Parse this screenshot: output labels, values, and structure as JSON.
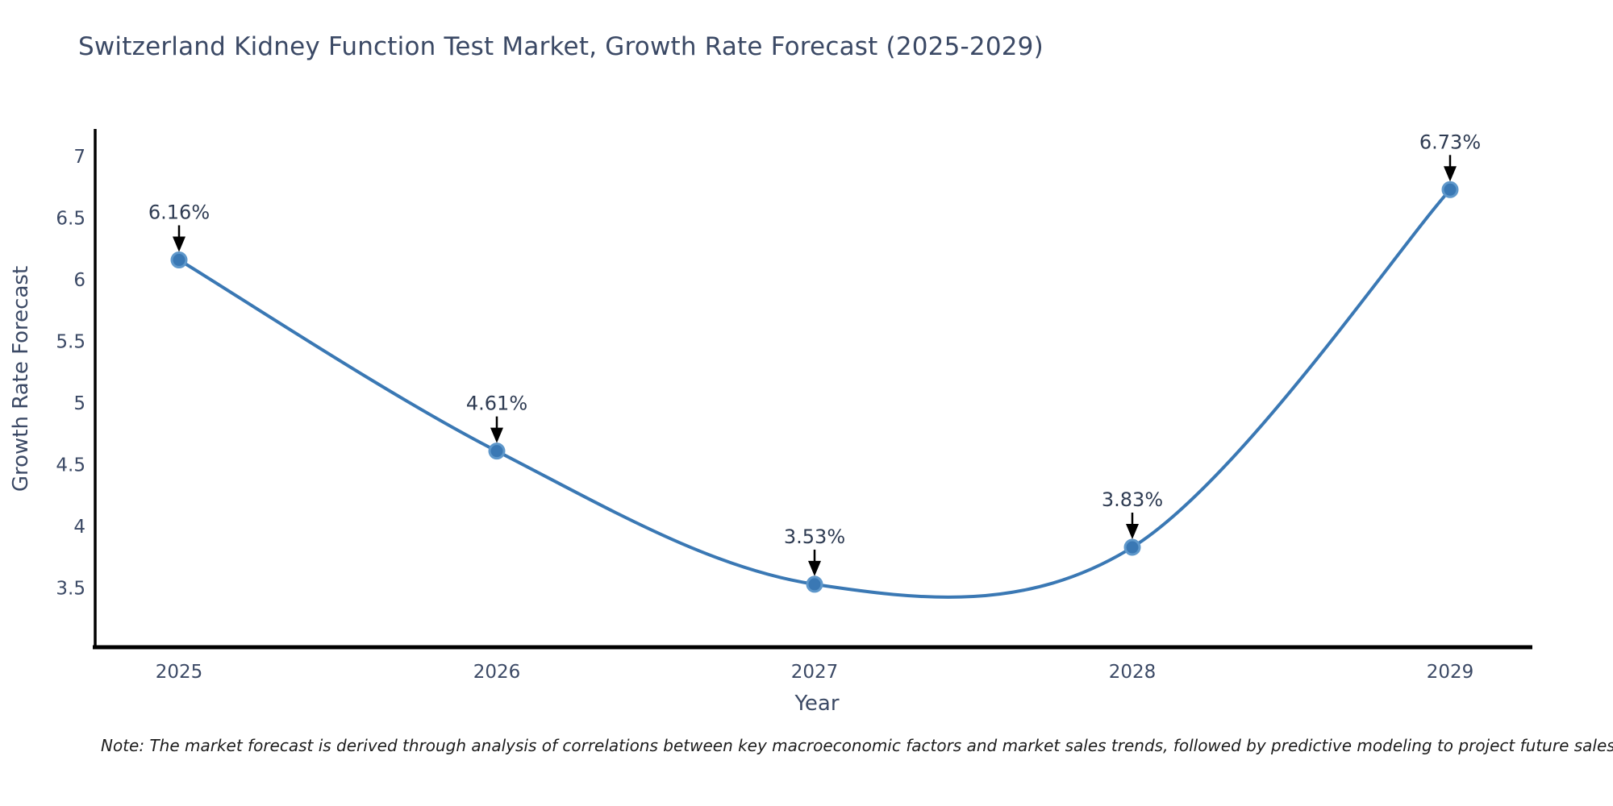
{
  "note": "Note: The market forecast is derived through analysis of correlations between key macroeconomic factors and market sales trends, followed by predictive modeling to project future sales",
  "chart_data": {
    "type": "line",
    "title": "Switzerland Kidney Function Test Market, Growth Rate Forecast (2025-2029)",
    "xlabel": "Year",
    "ylabel": "Growth Rate Forecast",
    "x": [
      2025,
      2026,
      2027,
      2028,
      2029
    ],
    "series": [
      {
        "name": "Growth Rate Forecast",
        "values": [
          6.16,
          4.61,
          3.53,
          3.83,
          6.73
        ],
        "labels": [
          "6.16%",
          "4.61%",
          "3.53%",
          "3.83%",
          "6.73%"
        ]
      }
    ],
    "yticks": [
      3.5,
      4,
      4.5,
      5,
      5.5,
      6,
      6.5,
      7
    ],
    "ylim": [
      3.05,
      7.25
    ],
    "grid": false,
    "legend": false,
    "line_style": "smooth-spline",
    "marker": "circle",
    "annotation_arrow": "down-to-point",
    "colors": {
      "line": "#3a78b4",
      "marker_fill": "#3a78b4",
      "marker_edge": "#5f98cb",
      "axis": "#000000",
      "tick_text": "#3b4965",
      "title_text": "#3b4965",
      "annotation_text": "#2e3b52",
      "arrow": "#000000",
      "note_text": "#1c1c1c",
      "background": "#ffffff"
    }
  }
}
